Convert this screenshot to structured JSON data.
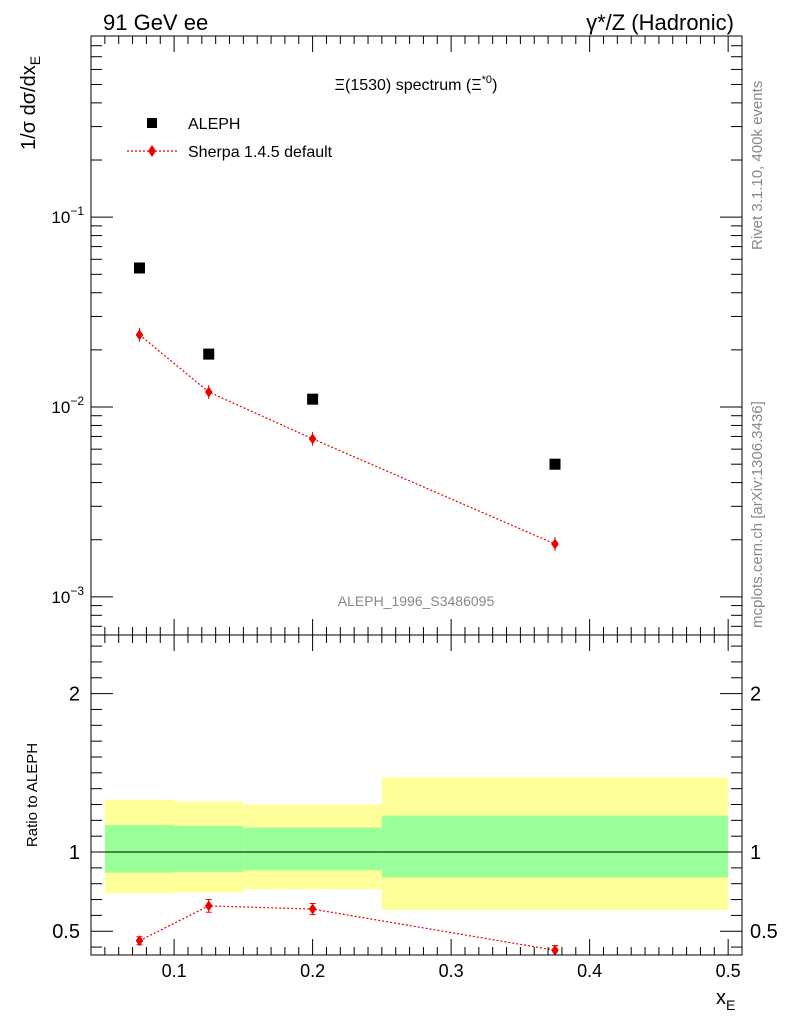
{
  "header": {
    "left": "91 GeV ee",
    "right": "γ*/Z (Hadronic)"
  },
  "side_notes": {
    "rivet": "Rivet 3.1.10,  400k events",
    "mcplots": "mcplots.cern.ch [arXiv:1306.3436]"
  },
  "watermark": "ALEPH_1996_S3486095",
  "colors": {
    "mc": "#ee0000",
    "band_inner": "#99ff99",
    "band_outer": "#ffff99",
    "data": "#000000"
  },
  "chart_data": [
    {
      "type": "scatter",
      "scale": "log",
      "title": "Ξ(1530) spectrum (Ξ*0)",
      "title_main": "Ξ(1530) spectrum (Ξ",
      "title_sup": "*0",
      "title_end": ")",
      "ylabel": "1/σ dσ/dx",
      "ylabel_sub": "E",
      "xlim": [
        0.04,
        0.51
      ],
      "ylim": [
        0.00063,
        0.9
      ],
      "yticks": [
        {
          "value": 0.1,
          "base": "10",
          "exp": "−1"
        },
        {
          "value": 0.01,
          "base": "10",
          "exp": "−2"
        },
        {
          "value": 0.001,
          "base": "10",
          "exp": "−3"
        }
      ],
      "legend": [
        {
          "label": "ALEPH",
          "marker": "square"
        },
        {
          "label": "Sherpa 1.4.5 default",
          "marker": "diamond"
        }
      ],
      "series": [
        {
          "name": "ALEPH",
          "x": [
            0.075,
            0.125,
            0.2,
            0.375
          ],
          "values": [
            0.054,
            0.019,
            0.011,
            0.005
          ]
        },
        {
          "name": "Sherpa 1.4.5 default",
          "x": [
            0.075,
            0.125,
            0.2,
            0.375
          ],
          "values": [
            0.024,
            0.012,
            0.0068,
            0.0019
          ]
        }
      ]
    },
    {
      "type": "line",
      "ylabel": "Ratio to ALEPH",
      "xlabel": "x",
      "xlabel_sub": "E",
      "xlim": [
        0.04,
        0.51
      ],
      "ylim": [
        0.35,
        2.37
      ],
      "xticks": [
        0.1,
        0.2,
        0.3,
        0.4,
        0.5
      ],
      "xtick_labels": [
        "0.1",
        "0.2",
        "0.3",
        "0.4",
        "0.5"
      ],
      "yticks": [
        0.5,
        1,
        2
      ],
      "ytick_labels": [
        "0.5",
        "1",
        "2"
      ],
      "bands": [
        {
          "x0": 0.05,
          "x1": 0.1,
          "inner": [
            0.87,
            1.17
          ],
          "outer": [
            0.74,
            1.33
          ]
        },
        {
          "x0": 0.1,
          "x1": 0.15,
          "inner": [
            0.875,
            1.165
          ],
          "outer": [
            0.745,
            1.32
          ]
        },
        {
          "x0": 0.15,
          "x1": 0.25,
          "inner": [
            0.885,
            1.155
          ],
          "outer": [
            0.765,
            1.3
          ]
        },
        {
          "x0": 0.25,
          "x1": 0.5,
          "inner": [
            0.84,
            1.23
          ],
          "outer": [
            0.635,
            1.47
          ]
        }
      ],
      "series": [
        {
          "name": "Sherpa 1.4.5 default / ALEPH",
          "x": [
            0.075,
            0.125,
            0.2,
            0.375
          ],
          "values": [
            0.44,
            0.66,
            0.64,
            0.38
          ],
          "err": [
            0.025,
            0.04,
            0.035,
            0.03
          ]
        }
      ]
    }
  ]
}
